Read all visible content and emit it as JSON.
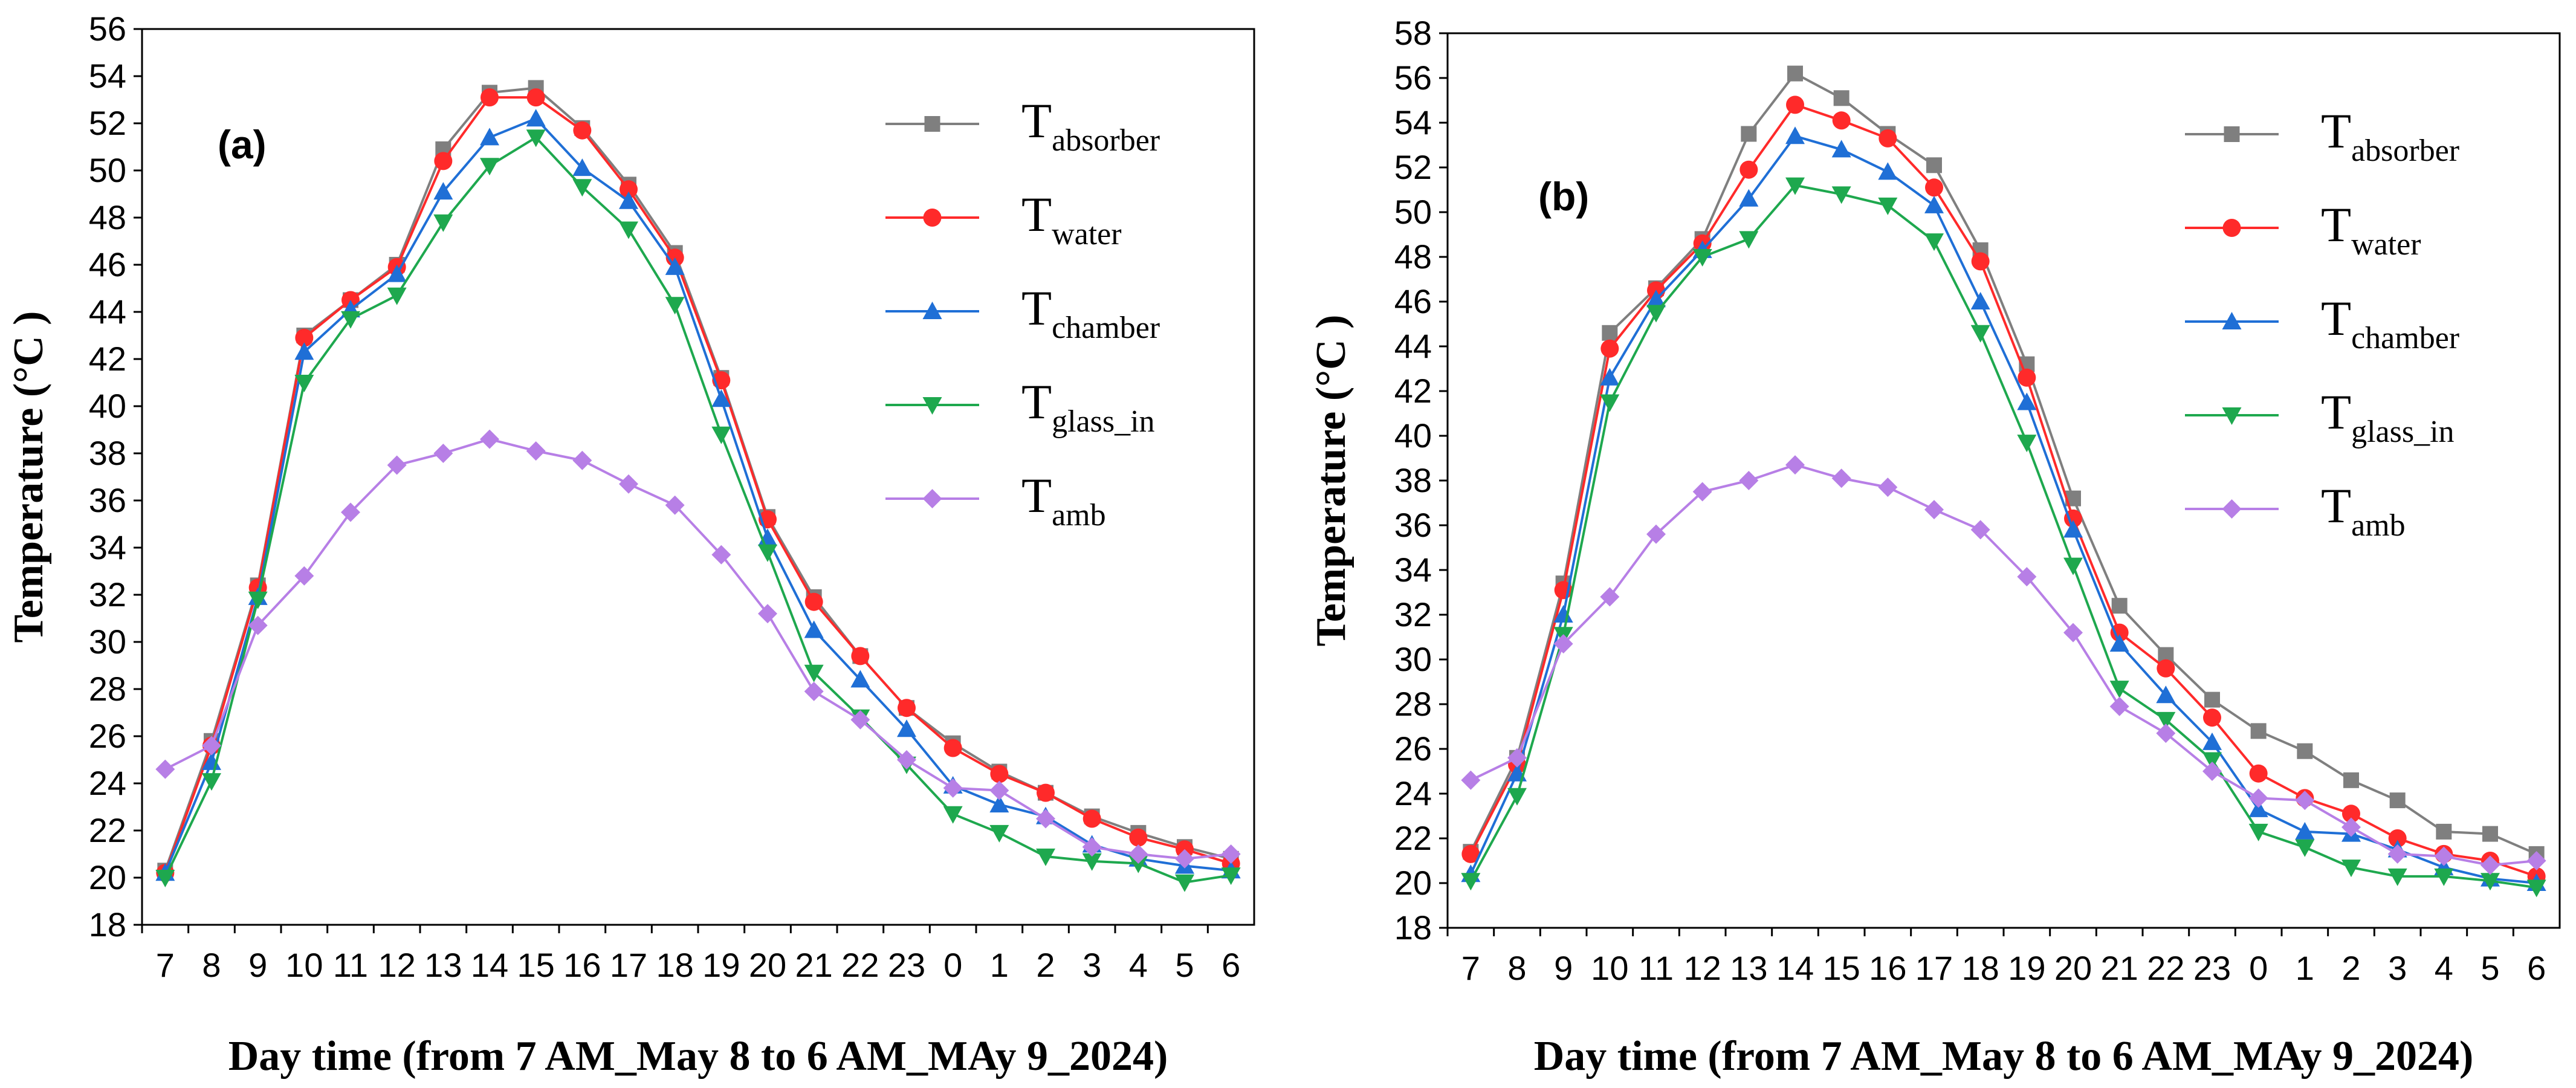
{
  "chart_data": [
    {
      "type": "line",
      "panel_label": "(a)",
      "xlabel": "Day time (from 7 AM_May 8 to 6 AM_MAy 9_2024)",
      "ylabel": "Temperature (°C )",
      "x": [
        "7",
        "8",
        "9",
        "10",
        "11",
        "12",
        "13",
        "14",
        "15",
        "16",
        "17",
        "18",
        "19",
        "20",
        "21",
        "22",
        "23",
        "0",
        "1",
        "2",
        "3",
        "4",
        "5",
        "6"
      ],
      "ylim": [
        18,
        56
      ],
      "yticks": [
        18,
        20,
        22,
        24,
        26,
        28,
        30,
        32,
        34,
        36,
        38,
        40,
        42,
        44,
        46,
        48,
        50,
        52,
        54,
        56
      ],
      "grid": false,
      "legend_position": "top-right",
      "series": [
        {
          "name": "T",
          "sub": "absorber",
          "color": "#7f7f7f",
          "marker": "square",
          "values": [
            20.3,
            25.8,
            32.4,
            43.0,
            44.5,
            46.0,
            50.9,
            53.3,
            53.5,
            51.8,
            49.4,
            46.5,
            41.2,
            35.3,
            31.9,
            29.4,
            27.2,
            25.7,
            24.5,
            23.6,
            22.6,
            21.9,
            21.3,
            20.8
          ]
        },
        {
          "name": "T",
          "sub": "water",
          "color": "#ff2a2a",
          "marker": "circle",
          "values": [
            20.2,
            25.6,
            32.3,
            42.9,
            44.5,
            45.9,
            50.4,
            53.1,
            53.1,
            51.7,
            49.2,
            46.3,
            41.1,
            35.2,
            31.7,
            29.4,
            27.2,
            25.5,
            24.4,
            23.6,
            22.5,
            21.7,
            21.2,
            20.6
          ]
        },
        {
          "name": "T",
          "sub": "chamber",
          "color": "#1f6fd6",
          "marker": "triangle-up",
          "values": [
            20.2,
            24.9,
            31.9,
            42.3,
            44.1,
            45.6,
            49.1,
            51.4,
            52.2,
            50.1,
            48.7,
            45.9,
            40.3,
            34.4,
            30.5,
            28.4,
            26.3,
            23.9,
            23.1,
            22.6,
            21.4,
            20.8,
            20.5,
            20.3
          ]
        },
        {
          "name": "T",
          "sub": "glass_in",
          "color": "#1ea84e",
          "marker": "triangle-down",
          "values": [
            20.0,
            24.1,
            31.8,
            41.0,
            43.7,
            44.7,
            47.8,
            50.2,
            51.4,
            49.3,
            47.5,
            44.3,
            38.8,
            33.8,
            28.7,
            26.8,
            24.8,
            22.7,
            21.9,
            20.9,
            20.7,
            20.6,
            19.8,
            20.1
          ]
        },
        {
          "name": "T",
          "sub": "amb",
          "color": "#b77fe6",
          "marker": "diamond",
          "values": [
            24.6,
            25.6,
            30.7,
            32.8,
            35.5,
            37.5,
            38.0,
            38.6,
            38.1,
            37.7,
            36.7,
            35.8,
            33.7,
            31.2,
            27.9,
            26.7,
            25.0,
            23.8,
            23.7,
            22.5,
            21.3,
            21.0,
            20.8,
            21.0
          ]
        }
      ]
    },
    {
      "type": "line",
      "panel_label": "(b)",
      "xlabel": "Day time (from 7 AM_May 8 to 6 AM_MAy 9_2024)",
      "ylabel": "Temperature (°C )",
      "x": [
        "7",
        "8",
        "9",
        "10",
        "11",
        "12",
        "13",
        "14",
        "15",
        "16",
        "17",
        "18",
        "19",
        "20",
        "21",
        "22",
        "23",
        "0",
        "1",
        "2",
        "3",
        "4",
        "5",
        "6"
      ],
      "ylim": [
        18,
        58
      ],
      "yticks": [
        18,
        20,
        22,
        24,
        26,
        28,
        30,
        32,
        34,
        36,
        38,
        40,
        42,
        44,
        46,
        48,
        50,
        52,
        54,
        56,
        58
      ],
      "grid": false,
      "legend_position": "top-right",
      "series": [
        {
          "name": "T",
          "sub": "absorber",
          "color": "#7f7f7f",
          "marker": "square",
          "values": [
            21.4,
            25.6,
            33.4,
            44.6,
            46.6,
            48.8,
            53.5,
            56.2,
            55.1,
            53.5,
            52.1,
            48.3,
            43.2,
            37.2,
            32.4,
            30.2,
            28.2,
            26.8,
            25.9,
            24.6,
            23.7,
            22.3,
            22.2,
            21.3
          ]
        },
        {
          "name": "T",
          "sub": "water",
          "color": "#ff2a2a",
          "marker": "circle",
          "values": [
            21.3,
            25.3,
            33.1,
            43.9,
            46.5,
            48.6,
            51.9,
            54.8,
            54.1,
            53.3,
            51.1,
            47.8,
            42.6,
            36.3,
            31.2,
            29.6,
            27.4,
            24.9,
            23.8,
            23.1,
            22.0,
            21.3,
            21.0,
            20.3
          ]
        },
        {
          "name": "T",
          "sub": "chamber",
          "color": "#1f6fd6",
          "marker": "triangle-up",
          "values": [
            20.4,
            24.9,
            32.0,
            42.6,
            46.1,
            48.3,
            50.6,
            53.4,
            52.8,
            51.8,
            50.3,
            46.0,
            41.5,
            35.8,
            30.7,
            28.4,
            26.3,
            23.3,
            22.3,
            22.2,
            21.5,
            20.7,
            20.2,
            20.0
          ]
        },
        {
          "name": "T",
          "sub": "glass_in",
          "color": "#1ea84e",
          "marker": "triangle-down",
          "values": [
            20.1,
            23.9,
            31.1,
            41.5,
            45.5,
            48.0,
            48.8,
            51.2,
            50.8,
            50.3,
            48.7,
            44.6,
            39.7,
            34.2,
            28.7,
            27.3,
            25.5,
            22.3,
            21.6,
            20.7,
            20.3,
            20.3,
            20.1,
            19.8
          ]
        },
        {
          "name": "T",
          "sub": "amb",
          "color": "#b77fe6",
          "marker": "diamond",
          "values": [
            24.6,
            25.6,
            30.7,
            32.8,
            35.6,
            37.5,
            38.0,
            38.7,
            38.1,
            37.7,
            36.7,
            35.8,
            33.7,
            31.2,
            27.9,
            26.7,
            25.0,
            23.8,
            23.7,
            22.5,
            21.3,
            21.2,
            20.8,
            21.0
          ]
        }
      ]
    }
  ]
}
